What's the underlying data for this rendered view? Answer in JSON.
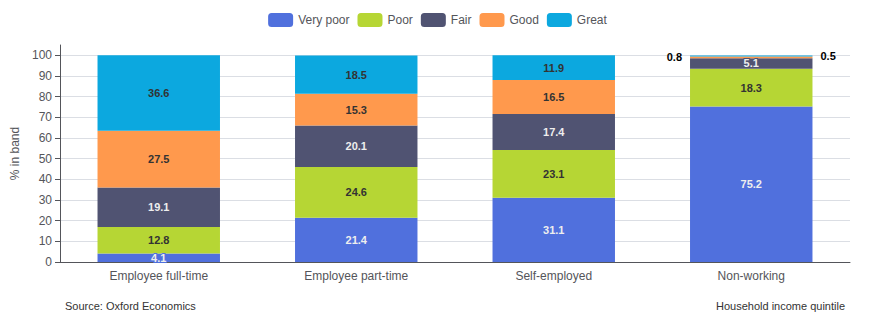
{
  "chart_data": {
    "type": "bar",
    "stacked": true,
    "categories": [
      "Employee full-time",
      "Employee part-time",
      "Self-employed",
      "Non-working"
    ],
    "series": [
      {
        "name": "Very poor",
        "values": [
          4.1,
          21.4,
          31.1,
          75.2
        ]
      },
      {
        "name": "Poor",
        "values": [
          12.8,
          24.6,
          23.1,
          18.3
        ]
      },
      {
        "name": "Fair",
        "values": [
          19.1,
          20.1,
          17.4,
          5.1
        ]
      },
      {
        "name": "Good",
        "values": [
          27.5,
          15.3,
          16.5,
          0.8
        ]
      },
      {
        "name": "Great",
        "values": [
          36.6,
          18.5,
          11.9,
          0.5
        ]
      }
    ],
    "ylabel": "% in band",
    "ylim": [
      0,
      105
    ],
    "yticks": [
      0,
      10,
      20,
      30,
      40,
      50,
      60,
      70,
      80,
      90,
      100
    ],
    "grid": true,
    "legend": "top",
    "data_labels": true,
    "annotations": [
      "Source: Oxford Economics",
      "Household income quintile"
    ]
  }
}
